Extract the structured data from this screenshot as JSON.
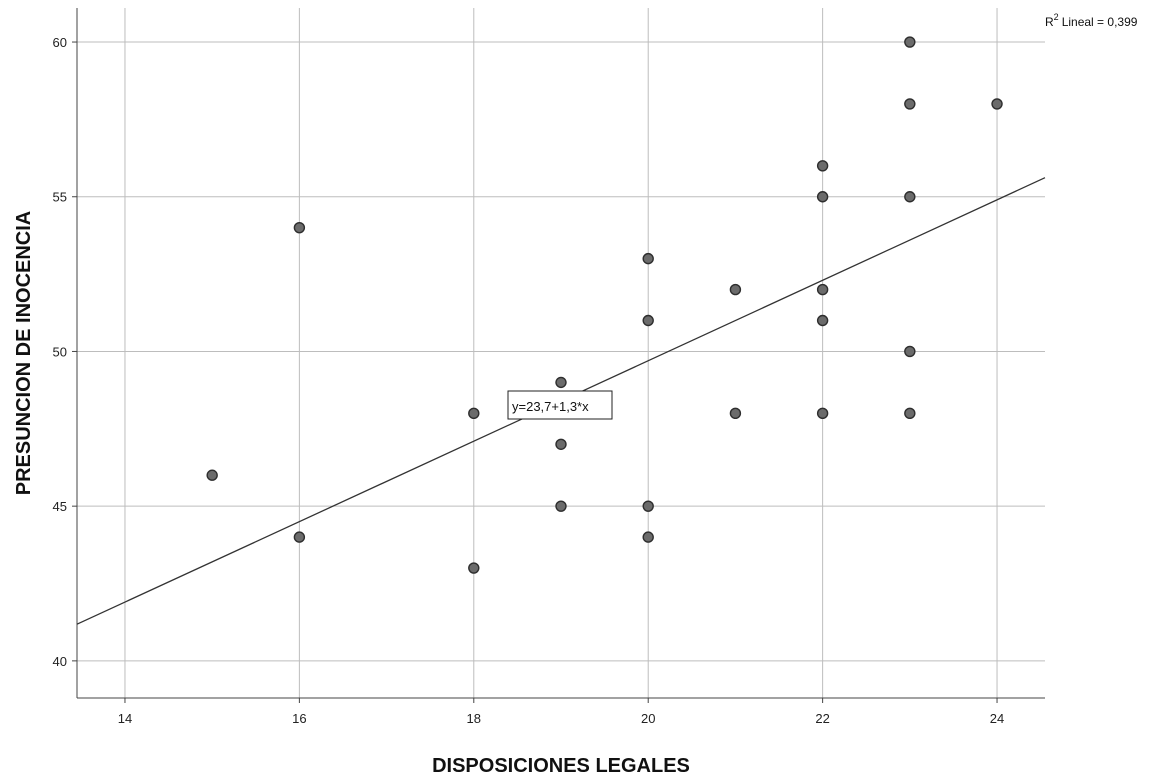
{
  "chart_data": {
    "type": "scatter",
    "title": "",
    "xlabel": "DISPOSICIONES LEGALES",
    "ylabel": "PRESUNCION DE INOCENCIA",
    "xlim": [
      13.45,
      24.55
    ],
    "ylim": [
      38.8,
      61.1
    ],
    "xticks": [
      14,
      16,
      18,
      20,
      22,
      24
    ],
    "yticks": [
      40,
      45,
      50,
      55,
      60
    ],
    "grid": true,
    "colors": {
      "point_fill": "#6b6b6b",
      "point_stroke": "#2e2e2e",
      "grid": "#bdbdbd",
      "fit_line": "#333333"
    },
    "points": [
      {
        "x": 15,
        "y": 46
      },
      {
        "x": 16,
        "y": 54
      },
      {
        "x": 16,
        "y": 44
      },
      {
        "x": 18,
        "y": 48
      },
      {
        "x": 18,
        "y": 43
      },
      {
        "x": 19,
        "y": 49
      },
      {
        "x": 19,
        "y": 48
      },
      {
        "x": 19,
        "y": 47
      },
      {
        "x": 19,
        "y": 45
      },
      {
        "x": 20,
        "y": 53
      },
      {
        "x": 20,
        "y": 51
      },
      {
        "x": 20,
        "y": 45
      },
      {
        "x": 20,
        "y": 44
      },
      {
        "x": 21,
        "y": 52
      },
      {
        "x": 21,
        "y": 48
      },
      {
        "x": 22,
        "y": 56
      },
      {
        "x": 22,
        "y": 55
      },
      {
        "x": 22,
        "y": 52
      },
      {
        "x": 22,
        "y": 51
      },
      {
        "x": 22,
        "y": 48
      },
      {
        "x": 23,
        "y": 60
      },
      {
        "x": 23,
        "y": 58
      },
      {
        "x": 23,
        "y": 55
      },
      {
        "x": 23,
        "y": 50
      },
      {
        "x": 23,
        "y": 48
      },
      {
        "x": 24,
        "y": 58
      }
    ],
    "fit": {
      "intercept": 23.7,
      "slope": 1.3,
      "equation_label": "y=23,7+1,3*x"
    },
    "r2_label": "Lineal = 0,399",
    "r2_prefix": "R",
    "r2_sup": "2"
  }
}
